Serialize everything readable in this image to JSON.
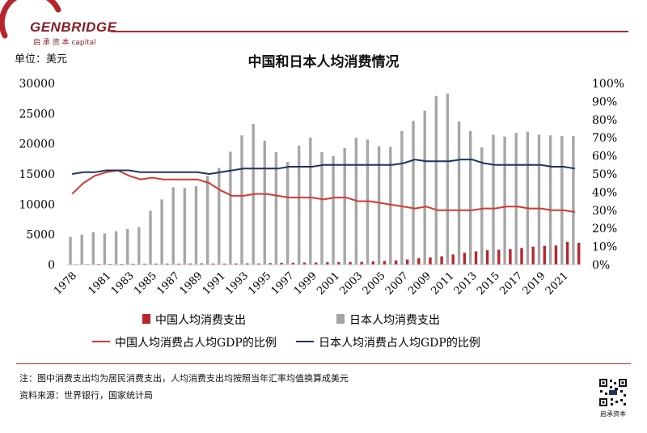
{
  "header": {
    "brand": "GENBRIDGE",
    "brand_sub": "启 承 资 本  capital"
  },
  "unit_label": "单位：美元",
  "footer": {
    "note": "注：图中消费支出均为居民消费支出，人均消费支出均按照当年汇率均值换算成美元",
    "source": "资料来源：世界银行，国家统计局",
    "qr_label": "启承资本"
  },
  "colors": {
    "brand": "#8a1c24",
    "china_bar": "#b5272d",
    "japan_bar": "#a6a6a6",
    "china_line": "#d23a32",
    "japan_line": "#1f3264"
  },
  "chart_data": {
    "type": "bar",
    "title": "中国和日本人均消费情况",
    "x": [
      1978,
      1979,
      1980,
      1981,
      1982,
      1983,
      1984,
      1985,
      1986,
      1987,
      1988,
      1989,
      1990,
      1991,
      1992,
      1993,
      1994,
      1995,
      1996,
      1997,
      1998,
      1999,
      2000,
      2001,
      2002,
      2003,
      2004,
      2005,
      2006,
      2007,
      2008,
      2009,
      2010,
      2011,
      2012,
      2013,
      2014,
      2015,
      2016,
      2017,
      2018,
      2019,
      2020,
      2021,
      2022
    ],
    "x_tick_labels": [
      "1978",
      "1981",
      "1983",
      "1985",
      "1987",
      "1989",
      "1991",
      "1993",
      "1995",
      "1997",
      "1999",
      "2001",
      "2003",
      "2005",
      "2007",
      "2009",
      "2011",
      "2013",
      "2015",
      "2017",
      "2019",
      "2021"
    ],
    "y_left": {
      "lim": [
        0,
        30000
      ],
      "ticks": [
        "0",
        "5000",
        "10000",
        "15000",
        "20000",
        "25000",
        "30000"
      ]
    },
    "y_right": {
      "lim": [
        0,
        100
      ],
      "ticks": [
        "0%",
        "10%",
        "20%",
        "30%",
        "40%",
        "50%",
        "60%",
        "70%",
        "80%",
        "90%",
        "100%"
      ]
    },
    "legend": {
      "placement": "bottom"
    },
    "grid": false,
    "series": [
      {
        "name": "中国人均消费支出",
        "kind": "bar",
        "axis": "left",
        "values": [
          100,
          110,
          130,
          140,
          140,
          150,
          160,
          180,
          170,
          160,
          190,
          200,
          170,
          180,
          190,
          200,
          190,
          240,
          290,
          310,
          330,
          350,
          390,
          410,
          440,
          470,
          520,
          600,
          710,
          860,
          1060,
          1190,
          1380,
          1690,
          1970,
          2190,
          2390,
          2470,
          2580,
          2760,
          2990,
          3120,
          3170,
          3750,
          3620
        ]
      },
      {
        "name": "日本人均消费支出",
        "kind": "bar",
        "axis": "left",
        "values": [
          4600,
          4950,
          5350,
          5150,
          5550,
          5900,
          6200,
          8900,
          10800,
          12800,
          12700,
          13000,
          14700,
          16000,
          18700,
          21400,
          23300,
          20500,
          18600,
          17000,
          19700,
          21000,
          18600,
          18000,
          19300,
          21000,
          20700,
          19600,
          19500,
          22100,
          23800,
          25500,
          27900,
          28300,
          23700,
          22100,
          19400,
          21500,
          21200,
          21800,
          22000,
          21500,
          21400,
          21300,
          21300
        ]
      },
      {
        "name": "中国人均消费占人均GDP的比例",
        "kind": "line",
        "axis": "right",
        "values": [
          39,
          45,
          49,
          51,
          52,
          49,
          47,
          48,
          47,
          47,
          47,
          47,
          45,
          41,
          38,
          38,
          39,
          39,
          38,
          37,
          37,
          37,
          36,
          37,
          37,
          35,
          35,
          34,
          33,
          32,
          31,
          32,
          30,
          30,
          30,
          30,
          31,
          31,
          32,
          32,
          31,
          31,
          30,
          30,
          29
        ]
      },
      {
        "name": "日本人均消费占人均GDP的比例",
        "kind": "line",
        "axis": "right",
        "values": [
          50,
          51,
          51,
          52,
          52,
          52,
          51,
          51,
          51,
          51,
          51,
          51,
          50,
          51,
          52,
          53,
          53,
          53,
          53,
          54,
          54,
          54,
          55,
          55,
          55,
          55,
          55,
          55,
          55,
          56,
          58,
          57,
          57,
          57,
          58,
          58,
          56,
          55,
          55,
          55,
          55,
          55,
          54,
          54,
          53
        ]
      }
    ]
  }
}
